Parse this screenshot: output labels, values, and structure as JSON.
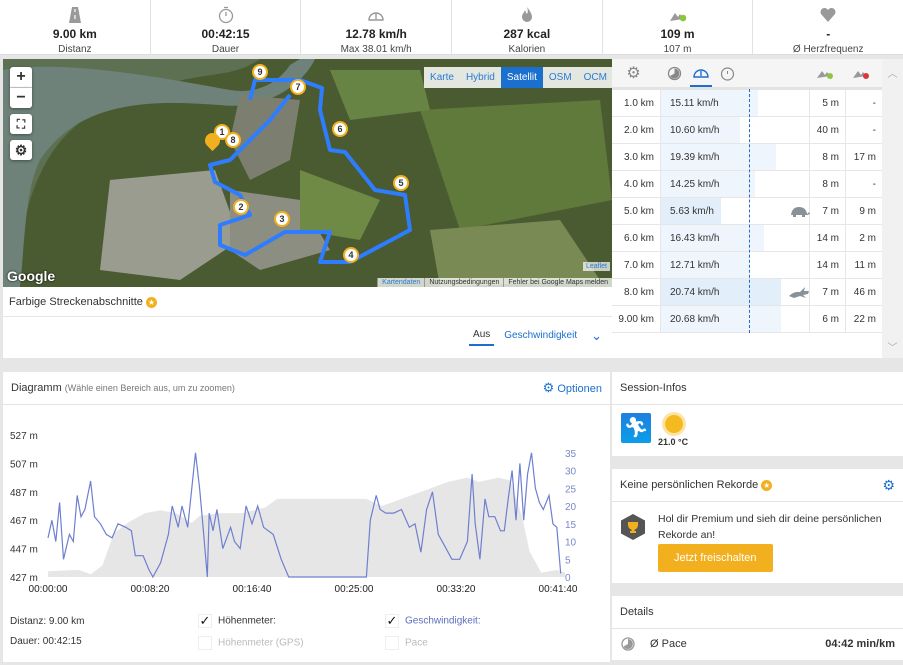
{
  "stats": [
    {
      "icon": "road-icon",
      "value": "9.00 km",
      "label": "Distanz"
    },
    {
      "icon": "stopwatch-icon",
      "value": "00:42:15",
      "label": "Dauer"
    },
    {
      "icon": "speedometer-icon",
      "value": "12.78 km/h",
      "label": "Max 38.01 km/h"
    },
    {
      "icon": "flame-icon",
      "value": "287 kcal",
      "label": "Kalorien"
    },
    {
      "icon": "elevation-up-icon",
      "value": "109 m",
      "label": "107 m"
    },
    {
      "icon": "heart-icon",
      "value": "-",
      "label": "Ø Herzfrequenz"
    }
  ],
  "map": {
    "zoom_in": "+",
    "zoom_out": "−",
    "types": [
      "Karte",
      "Hybrid",
      "Satellit",
      "OSM",
      "OCM"
    ],
    "selected_type": "Satellit",
    "google": "Google",
    "leaflet": "Leaflet",
    "attribution": [
      "Kartendaten",
      "Nutzungsbedingungen",
      "Fehler bei Google Maps melden"
    ],
    "markers": [
      "1",
      "2",
      "3",
      "4",
      "5",
      "6",
      "7",
      "8",
      "9"
    ],
    "colored_segments": "Farbige Streckenabschnitte",
    "tabs": [
      "Aus",
      "Geschwindigkeit"
    ],
    "active_tab": "Aus"
  },
  "splits": {
    "avg_speed": 12.78,
    "rows": [
      {
        "dist": "1.0 km",
        "speed": "15.11 km/h",
        "v": 15.11,
        "up": "5 m",
        "down": "-",
        "icon": ""
      },
      {
        "dist": "2.0 km",
        "speed": "10.60 km/h",
        "v": 10.6,
        "up": "40 m",
        "down": "-",
        "icon": ""
      },
      {
        "dist": "3.0 km",
        "speed": "19.39 km/h",
        "v": 19.39,
        "up": "8 m",
        "down": "17 m",
        "icon": ""
      },
      {
        "dist": "4.0 km",
        "speed": "14.25 km/h",
        "v": 14.25,
        "up": "8 m",
        "down": "-",
        "icon": ""
      },
      {
        "dist": "5.0 km",
        "speed": "5.63 km/h",
        "v": 5.63,
        "up": "7 m",
        "down": "9 m",
        "icon": "turtle-icon"
      },
      {
        "dist": "6.0 km",
        "speed": "16.43 km/h",
        "v": 16.43,
        "up": "14 m",
        "down": "2 m",
        "icon": ""
      },
      {
        "dist": "7.0 km",
        "speed": "12.71 km/h",
        "v": 12.71,
        "up": "14 m",
        "down": "11 m",
        "icon": ""
      },
      {
        "dist": "8.0 km",
        "speed": "20.74 km/h",
        "v": 20.74,
        "up": "7 m",
        "down": "46 m",
        "icon": "rabbit-icon"
      },
      {
        "dist": "9.00 km",
        "speed": "20.68 km/h",
        "v": 20.68,
        "up": "6 m",
        "down": "22 m",
        "icon": ""
      }
    ]
  },
  "diagram": {
    "title": "Diagramm",
    "hint": "(Wähle einen Bereich aus, um zu zoomen)",
    "options": "Optionen",
    "distance": "Distanz: 9.00 km",
    "duration": "Dauer: 00:42:15",
    "checks": [
      {
        "label": "Höhenmeter:",
        "checked": true
      },
      {
        "label": "Höhenmeter (GPS)",
        "checked": false
      },
      {
        "label": "Geschwindigkeit:",
        "checked": true
      },
      {
        "label": "Pace",
        "checked": false
      }
    ]
  },
  "chart_data": {
    "type": "area+line",
    "x_unit": "seconds",
    "x_ticks": [
      "00:00:00",
      "00:08:20",
      "00:16:40",
      "00:25:00",
      "00:33:20",
      "00:41:40"
    ],
    "x_tick_values": [
      0,
      500,
      1000,
      1500,
      2000,
      2500
    ],
    "xlim": [
      0,
      2535
    ],
    "left_axis": {
      "label": "m",
      "ticks": [
        "527 m",
        "507 m",
        "487 m",
        "467 m",
        "447 m",
        "427 m"
      ],
      "range": [
        427,
        527
      ]
    },
    "right_axis": {
      "label": "km/h",
      "ticks": [
        "35",
        "30",
        "25",
        "20",
        "15",
        "10",
        "5",
        "0"
      ],
      "range": [
        0,
        35
      ]
    },
    "series": [
      {
        "name": "Höhenmeter",
        "color": "#e6e6e6",
        "unit": "m",
        "points": [
          [
            0,
            431
          ],
          [
            152,
            432
          ],
          [
            209,
            429
          ],
          [
            266,
            435
          ],
          [
            324,
            458
          ],
          [
            400,
            466
          ],
          [
            476,
            472
          ],
          [
            552,
            474
          ],
          [
            628,
            472
          ],
          [
            704,
            465
          ],
          [
            743,
            470
          ],
          [
            838,
            472
          ],
          [
            952,
            472
          ],
          [
            1066,
            476
          ],
          [
            1123,
            482
          ],
          [
            1561,
            482
          ],
          [
            1637,
            477
          ],
          [
            1771,
            484
          ],
          [
            1866,
            489
          ],
          [
            1961,
            494
          ],
          [
            2056,
            497
          ],
          [
            2113,
            494
          ],
          [
            2209,
            497
          ],
          [
            2266,
            495
          ],
          [
            2323,
            470
          ],
          [
            2361,
            445
          ],
          [
            2418,
            430
          ],
          [
            2494,
            432
          ],
          [
            2535,
            430
          ]
        ]
      },
      {
        "name": "Geschwindigkeit",
        "color": "#6f7fcf",
        "unit": "km/h",
        "points": [
          [
            0,
            11
          ],
          [
            19,
            16
          ],
          [
            38,
            10
          ],
          [
            57,
            21
          ],
          [
            76,
            5
          ],
          [
            105,
            12
          ],
          [
            124,
            10
          ],
          [
            143,
            23
          ],
          [
            162,
            17
          ],
          [
            181,
            19
          ],
          [
            209,
            27
          ],
          [
            228,
            17
          ],
          [
            257,
            15
          ],
          [
            286,
            12
          ],
          [
            314,
            11
          ],
          [
            343,
            15
          ],
          [
            381,
            14
          ],
          [
            409,
            13
          ],
          [
            428,
            6
          ],
          [
            466,
            6
          ],
          [
            495,
            2
          ],
          [
            514,
            0
          ],
          [
            552,
            4
          ],
          [
            590,
            12
          ],
          [
            609,
            20
          ],
          [
            638,
            14
          ],
          [
            657,
            20
          ],
          [
            685,
            14
          ],
          [
            723,
            35
          ],
          [
            743,
            25
          ],
          [
            762,
            13
          ],
          [
            781,
            0
          ],
          [
            790,
            18
          ],
          [
            809,
            13
          ],
          [
            828,
            19
          ],
          [
            857,
            8
          ],
          [
            895,
            14
          ],
          [
            914,
            10
          ],
          [
            942,
            8
          ],
          [
            971,
            20
          ],
          [
            1000,
            15
          ],
          [
            1028,
            20
          ],
          [
            1057,
            14
          ],
          [
            1104,
            12
          ],
          [
            1143,
            5
          ],
          [
            1180,
            0
          ],
          [
            1561,
            0
          ],
          [
            1580,
            16
          ],
          [
            1609,
            23
          ],
          [
            1628,
            19
          ],
          [
            1656,
            18
          ],
          [
            1695,
            18
          ],
          [
            1733,
            19
          ],
          [
            1771,
            14
          ],
          [
            1799,
            15
          ],
          [
            1828,
            7
          ],
          [
            1856,
            19
          ],
          [
            1885,
            24
          ],
          [
            1913,
            12
          ],
          [
            1942,
            9
          ],
          [
            1980,
            5
          ],
          [
            2018,
            5
          ],
          [
            2056,
            10
          ],
          [
            2079,
            29
          ],
          [
            2094,
            15
          ],
          [
            2117,
            5
          ],
          [
            2142,
            22
          ],
          [
            2161,
            17
          ],
          [
            2190,
            17
          ],
          [
            2218,
            13
          ],
          [
            2237,
            13
          ],
          [
            2256,
            22
          ],
          [
            2275,
            30
          ],
          [
            2294,
            16
          ],
          [
            2313,
            32
          ],
          [
            2332,
            16
          ],
          [
            2351,
            29
          ],
          [
            2370,
            35
          ],
          [
            2389,
            25
          ],
          [
            2409,
            21
          ],
          [
            2428,
            19
          ],
          [
            2456,
            23
          ],
          [
            2475,
            15
          ],
          [
            2494,
            14
          ],
          [
            2513,
            1
          ]
        ]
      }
    ]
  },
  "session": {
    "title": "Session-Infos",
    "temperature": "21.0 °C"
  },
  "records": {
    "title": "Keine persönlichen Rekorde",
    "text": "Hol dir Premium und sieh dir deine persönlichen Rekorde an!",
    "button": "Jetzt freischalten"
  },
  "details": {
    "title": "Details",
    "pace_label": "Ø Pace",
    "pace_value": "04:42 min/km"
  },
  "colors": {
    "accent": "#1b6fce",
    "premium": "#f2b01e",
    "route": "#2f7dff"
  }
}
